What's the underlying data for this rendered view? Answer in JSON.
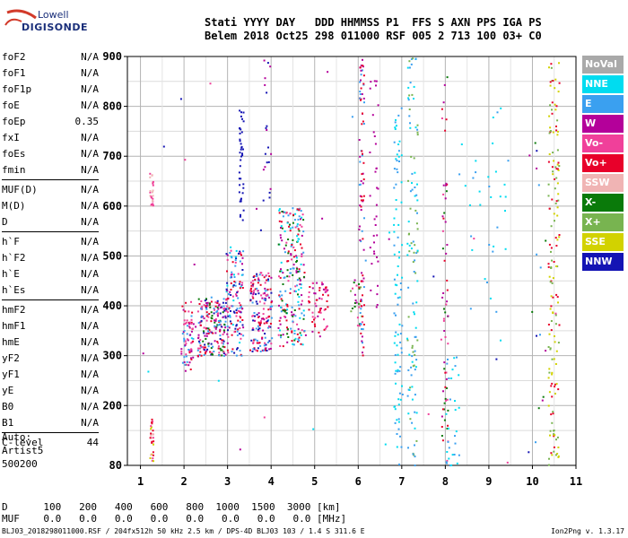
{
  "logo": {
    "line1": "Lowell",
    "line2": "DIGISONDE"
  },
  "header": {
    "line1": "Stati YYYY DAY   DDD HHMMSS P1  FFS S AXN PPS IGA PS",
    "line2": "Belem 2018 Oct25 298 011000 RSF 005 2 713 100 03+ C0"
  },
  "params": [
    {
      "group": [
        {
          "name": "foF2",
          "value": "N/A"
        },
        {
          "name": "foF1",
          "value": "N/A"
        },
        {
          "name": "foF1p",
          "value": "N/A"
        },
        {
          "name": "foE",
          "value": "N/A"
        },
        {
          "name": "foEp",
          "value": "0.35"
        },
        {
          "name": "fxI",
          "value": "N/A"
        },
        {
          "name": "foEs",
          "value": "N/A"
        },
        {
          "name": "fmin",
          "value": "N/A"
        }
      ]
    },
    {
      "group": [
        {
          "name": "MUF(D)",
          "value": "N/A"
        },
        {
          "name": "M(D)",
          "value": "N/A"
        },
        {
          "name": "D",
          "value": "N/A"
        }
      ]
    },
    {
      "group": [
        {
          "name": "h`F",
          "value": "N/A"
        },
        {
          "name": "h`F2",
          "value": "N/A"
        },
        {
          "name": "h`E",
          "value": "N/A"
        },
        {
          "name": "h`Es",
          "value": "N/A"
        }
      ]
    },
    {
      "group": [
        {
          "name": "hmF2",
          "value": "N/A"
        },
        {
          "name": "hmF1",
          "value": "N/A"
        },
        {
          "name": "hmE",
          "value": "N/A"
        },
        {
          "name": "yF2",
          "value": "N/A"
        },
        {
          "name": "yF1",
          "value": "N/A"
        },
        {
          "name": "yE",
          "value": "N/A"
        },
        {
          "name": "B0",
          "value": "N/A"
        },
        {
          "name": "B1",
          "value": "N/A"
        }
      ]
    },
    {
      "group": [
        {
          "name": "C-level",
          "value": "44"
        }
      ]
    }
  ],
  "auto": [
    "Auto:",
    "Artist5",
    "500200"
  ],
  "legend": [
    {
      "label": "NoVal",
      "color": "#a9a9a9"
    },
    {
      "label": "NNE",
      "color": "#00dcf0"
    },
    {
      "label": "E",
      "color": "#3aa0f0"
    },
    {
      "label": "W",
      "color": "#b4009a"
    },
    {
      "label": "Vo-",
      "color": "#f0409a"
    },
    {
      "label": "Vo+",
      "color": "#e8002a"
    },
    {
      "label": "SSW",
      "color": "#f0b4b4"
    },
    {
      "label": "X-",
      "color": "#0a7a0a"
    },
    {
      "label": "X+",
      "color": "#78b450"
    },
    {
      "label": "SSE",
      "color": "#d2d200"
    },
    {
      "label": "NNW",
      "color": "#1414b4"
    }
  ],
  "dtable": {
    "d_label": "D",
    "d_values": [
      "100",
      "200",
      "400",
      "600",
      "800",
      "1000",
      "1500",
      "3000",
      "[km]"
    ],
    "muf_label": "MUF",
    "muf_values": [
      "0.0",
      "0.0",
      "0.0",
      "0.0",
      "0.0",
      "0.0",
      "0.0",
      "0.0",
      "[MHz]"
    ]
  },
  "footer": {
    "left": "BLJ03_2018298011000.RSF / 204fx512h 50 kHz 2.5 km / DPS-4D BLJ03 103 / 1.4 S 311.6 E",
    "right": "Ion2Png v. 1.3.17"
  },
  "chart_data": {
    "type": "scatter",
    "xlim": [
      0.7,
      11
    ],
    "ylim": [
      80,
      900
    ],
    "xticks": [
      1,
      2,
      3,
      4,
      5,
      6,
      7,
      8,
      9,
      10,
      11
    ],
    "yticks": [
      80,
      200,
      300,
      400,
      500,
      600,
      700,
      800,
      900
    ],
    "grid": true,
    "legend_position": "right",
    "ytick_labels": [
      "80",
      "200",
      "300",
      "400",
      "500",
      "600",
      "700",
      "800",
      "900"
    ],
    "xtick_labels": [
      "1",
      "2",
      "3",
      "4",
      "5",
      "6",
      "7",
      "8",
      "9",
      "10",
      "11"
    ],
    "clusters": [
      {
        "fmin": 1.92,
        "fmax": 2.2,
        "hmin": 270,
        "hmax": 410,
        "n": 70,
        "colors": [
          "#e8002a",
          "#f0409a",
          "#b4009a",
          "#3aa0f0"
        ]
      },
      {
        "fmin": 2.3,
        "fmax": 2.95,
        "hmin": 300,
        "hmax": 420,
        "n": 200,
        "colors": [
          "#e8002a",
          "#f0409a",
          "#b4009a",
          "#0a7a0a",
          "#1414b4",
          "#3aa0f0"
        ]
      },
      {
        "fmin": 2.95,
        "fmax": 3.35,
        "hmin": 300,
        "hmax": 520,
        "n": 140,
        "colors": [
          "#e8002a",
          "#f0409a",
          "#b4009a",
          "#3aa0f0",
          "#00dcf0",
          "#1414b4"
        ]
      },
      {
        "fmin": 3.5,
        "fmax": 4.0,
        "hmin": 310,
        "hmax": 470,
        "n": 170,
        "colors": [
          "#e8002a",
          "#f0409a",
          "#b4009a",
          "#3aa0f0",
          "#1414b4"
        ]
      },
      {
        "fmin": 4.15,
        "fmax": 4.75,
        "hmin": 320,
        "hmax": 600,
        "n": 230,
        "colors": [
          "#e8002a",
          "#f0409a",
          "#b4009a",
          "#3aa0f0",
          "#00dcf0",
          "#0a7a0a"
        ]
      },
      {
        "fmin": 4.8,
        "fmax": 5.3,
        "hmin": 340,
        "hmax": 450,
        "n": 60,
        "colors": [
          "#e8002a",
          "#f0409a",
          "#b4009a"
        ]
      },
      {
        "fmin": 5.8,
        "fmax": 6.1,
        "hmin": 360,
        "hmax": 460,
        "n": 25,
        "colors": [
          "#b4009a",
          "#f0409a",
          "#0a7a0a",
          "#78b450"
        ]
      },
      {
        "fmin": 6.0,
        "fmax": 6.12,
        "hmin": 300,
        "hmax": 900,
        "n": 90,
        "colors": [
          "#b4009a",
          "#e8002a",
          "#3aa0f0"
        ]
      },
      {
        "fmin": 6.25,
        "fmax": 6.45,
        "hmin": 380,
        "hmax": 880,
        "n": 35,
        "colors": [
          "#b4009a"
        ]
      },
      {
        "fmin": 6.8,
        "fmax": 7.0,
        "hmin": 80,
        "hmax": 800,
        "n": 90,
        "colors": [
          "#3aa0f0",
          "#00dcf0"
        ]
      },
      {
        "fmin": 7.1,
        "fmax": 7.35,
        "hmin": 80,
        "hmax": 900,
        "n": 110,
        "colors": [
          "#3aa0f0",
          "#00dcf0",
          "#78b450"
        ]
      },
      {
        "fmin": 7.9,
        "fmax": 8.05,
        "hmin": 80,
        "hmax": 900,
        "n": 60,
        "colors": [
          "#b4009a",
          "#e8002a",
          "#f0409a",
          "#0a7a0a"
        ]
      },
      {
        "fmin": 8.0,
        "fmax": 8.3,
        "hmin": 80,
        "hmax": 300,
        "n": 30,
        "colors": [
          "#3aa0f0",
          "#00dcf0"
        ]
      },
      {
        "fmin": 8.3,
        "fmax": 9.4,
        "hmin": 380,
        "hmax": 820,
        "n": 30,
        "colors": [
          "#3aa0f0",
          "#00dcf0"
        ]
      },
      {
        "fmin": 10.35,
        "fmax": 10.6,
        "hmin": 80,
        "hmax": 900,
        "n": 150,
        "colors": [
          "#d2d200",
          "#78b450",
          "#e8002a"
        ]
      },
      {
        "fmin": 9.9,
        "fmax": 10.3,
        "hmin": 160,
        "hmax": 790,
        "n": 14,
        "colors": [
          "#1414b4",
          "#0a7a0a",
          "#b4009a",
          "#3aa0f0"
        ]
      },
      {
        "fmin": 1.2,
        "fmax": 1.28,
        "hmin": 90,
        "hmax": 180,
        "n": 30,
        "colors": [
          "#f0b4b4",
          "#f0409a",
          "#e8002a",
          "#d2d200"
        ]
      },
      {
        "fmin": 1.2,
        "fmax": 1.28,
        "hmin": 600,
        "hmax": 670,
        "n": 25,
        "colors": [
          "#f0b4b4",
          "#f0409a"
        ]
      },
      {
        "fmin": 3.25,
        "fmax": 3.35,
        "hmin": 560,
        "hmax": 800,
        "n": 40,
        "colors": [
          "#1414b4"
        ]
      },
      {
        "fmin": 3.8,
        "fmax": 4.0,
        "hmin": 600,
        "hmax": 900,
        "n": 20,
        "colors": [
          "#b4009a",
          "#1414b4"
        ]
      },
      {
        "fmin": 1.0,
        "fmax": 11.0,
        "hmin": 80,
        "hmax": 900,
        "n": 45,
        "colors": [
          "#3aa0f0",
          "#e8002a",
          "#b4009a",
          "#00dcf0",
          "#f0409a",
          "#1414b4"
        ]
      }
    ]
  }
}
